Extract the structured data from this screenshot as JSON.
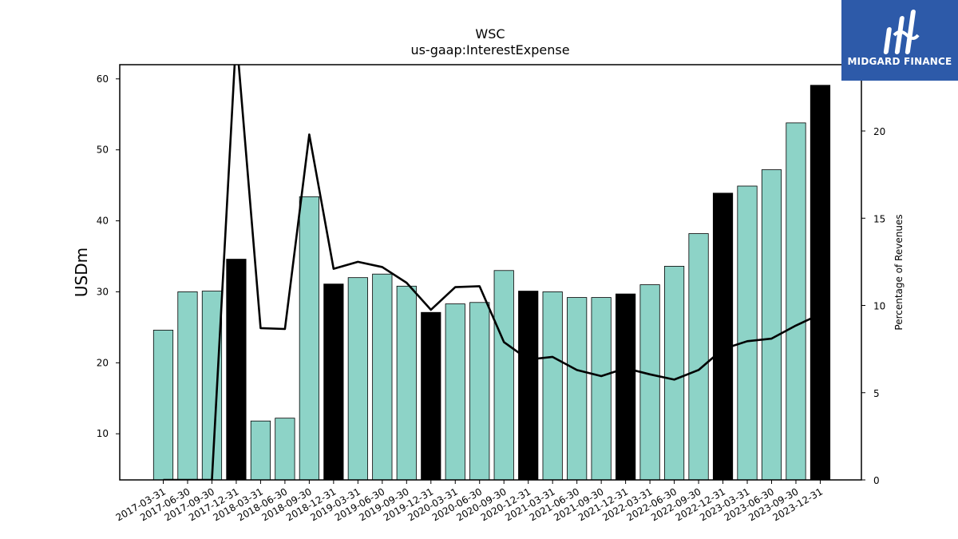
{
  "chart_data": {
    "type": "bar",
    "title": "WSC",
    "subtitle": "us-gaap:InterestExpense",
    "ylabel": "USDm",
    "ylabel_right": "Percentage of Revenues",
    "ylim": [
      3.5,
      62
    ],
    "ylim_right": [
      0,
      23.8
    ],
    "yticks": [
      10,
      20,
      30,
      40,
      50,
      60
    ],
    "yticks_right": [
      0,
      5,
      10,
      15,
      20
    ],
    "categories": [
      "2017-03-31",
      "2017-06-30",
      "2017-09-30",
      "2017-12-31",
      "2018-03-31",
      "2018-06-30",
      "2018-09-30",
      "2018-12-31",
      "2019-03-31",
      "2019-06-30",
      "2019-09-30",
      "2019-12-31",
      "2020-03-31",
      "2020-06-30",
      "2020-09-30",
      "2020-12-31",
      "2021-03-31",
      "2021-06-30",
      "2021-09-30",
      "2021-12-31",
      "2022-03-31",
      "2022-06-30",
      "2022-09-30",
      "2022-12-31",
      "2023-03-31",
      "2023-06-30",
      "2023-09-30",
      "2023-12-31"
    ],
    "series": [
      {
        "kind": "bar",
        "values": [
          24.6,
          30.0,
          30.1,
          34.6,
          11.8,
          12.2,
          43.4,
          31.1,
          32.0,
          32.5,
          30.8,
          27.1,
          28.3,
          28.5,
          33.0,
          30.1,
          30.0,
          29.2,
          29.2,
          29.7,
          31.0,
          33.6,
          38.2,
          43.9,
          44.9,
          47.2,
          53.8,
          59.1
        ],
        "colors": [
          "#8dd3c7",
          "#8dd3c7",
          "#8dd3c7",
          "#000000",
          "#8dd3c7",
          "#8dd3c7",
          "#8dd3c7",
          "#000000",
          "#8dd3c7",
          "#8dd3c7",
          "#8dd3c7",
          "#000000",
          "#8dd3c7",
          "#8dd3c7",
          "#8dd3c7",
          "#000000",
          "#8dd3c7",
          "#8dd3c7",
          "#8dd3c7",
          "#000000",
          "#8dd3c7",
          "#8dd3c7",
          "#8dd3c7",
          "#000000",
          "#8dd3c7",
          "#8dd3c7",
          "#8dd3c7",
          "#000000"
        ]
      },
      {
        "kind": "line",
        "axis": "right",
        "color": "#000000",
        "values": [
          0,
          0,
          0,
          25.5,
          8.7,
          8.65,
          19.8,
          12.1,
          12.5,
          12.2,
          11.3,
          9.75,
          11.05,
          11.1,
          7.9,
          6.9,
          7.05,
          6.3,
          5.95,
          6.4,
          6.05,
          5.75,
          6.3,
          7.5,
          7.95,
          8.1,
          8.85,
          9.5
        ]
      }
    ],
    "legend": "none",
    "grid": false
  },
  "logo": {
    "text": "MIDGARD FINANCE",
    "bg_color": "#2d5aa9"
  }
}
